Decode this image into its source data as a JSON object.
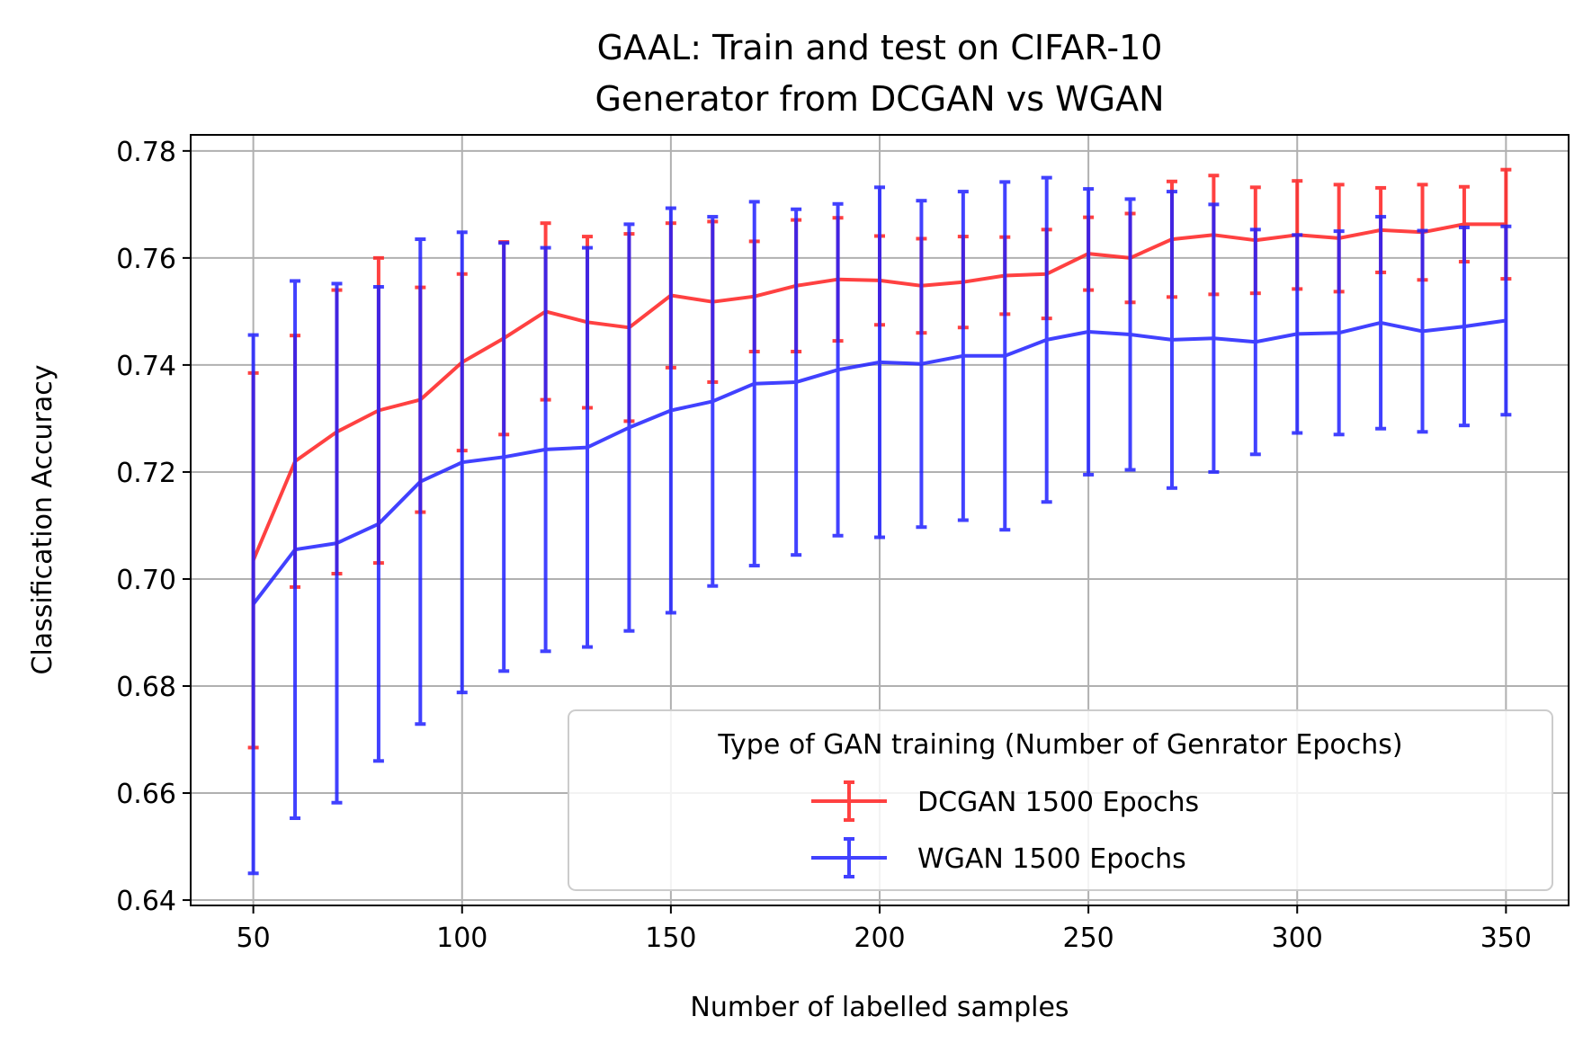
{
  "chart_data": {
    "type": "line",
    "title": [
      "GAAL: Train and test on CIFAR-10",
      "Generator from DCGAN vs WGAN"
    ],
    "xlabel": "Number of labelled samples",
    "ylabel": "Classification Accuracy",
    "xlim": [
      35,
      365
    ],
    "ylim": [
      0.639,
      0.783
    ],
    "xticks": [
      50,
      100,
      150,
      200,
      250,
      300,
      350
    ],
    "yticks": [
      0.64,
      0.66,
      0.68,
      0.7,
      0.72,
      0.74,
      0.76,
      0.78
    ],
    "xtick_labels": [
      "50",
      "100",
      "150",
      "200",
      "250",
      "300",
      "350"
    ],
    "ytick_labels": [
      "0.64",
      "0.66",
      "0.68",
      "0.70",
      "0.72",
      "0.74",
      "0.76",
      "0.78"
    ],
    "grid": true,
    "error_bars": true,
    "legend": {
      "title": "Type of GAN training (Number of Genrator Epochs)",
      "position": "lower-right"
    },
    "x": [
      50,
      60,
      70,
      80,
      90,
      100,
      110,
      120,
      130,
      140,
      150,
      160,
      170,
      180,
      190,
      200,
      210,
      220,
      230,
      240,
      250,
      260,
      270,
      280,
      290,
      300,
      310,
      320,
      330,
      340,
      350
    ],
    "series": [
      {
        "name": "DCGAN 1500 Epochs",
        "color": "#ff2020",
        "values": [
          0.7035,
          0.722,
          0.7275,
          0.7315,
          0.7335,
          0.7405,
          0.745,
          0.75,
          0.748,
          0.747,
          0.753,
          0.7518,
          0.7528,
          0.7548,
          0.756,
          0.7558,
          0.7548,
          0.7555,
          0.7567,
          0.757,
          0.7608,
          0.76,
          0.7635,
          0.7643,
          0.7633,
          0.7643,
          0.7637,
          0.7652,
          0.7648,
          0.7663,
          0.7663
        ],
        "errors": [
          0.035,
          0.0235,
          0.0265,
          0.0285,
          0.021,
          0.0165,
          0.018,
          0.0165,
          0.016,
          0.0175,
          0.0135,
          0.015,
          0.0103,
          0.0123,
          0.0115,
          0.0083,
          0.0088,
          0.0085,
          0.0072,
          0.0083,
          0.0068,
          0.0083,
          0.0108,
          0.0111,
          0.0099,
          0.0101,
          0.01,
          0.0079,
          0.0089,
          0.007,
          0.0102
        ]
      },
      {
        "name": "WGAN 1500 Epochs",
        "color": "#2020ff",
        "values": [
          0.6953,
          0.7055,
          0.7067,
          0.7103,
          0.7182,
          0.7218,
          0.7228,
          0.7242,
          0.7246,
          0.7283,
          0.7315,
          0.7332,
          0.7365,
          0.7368,
          0.7391,
          0.7405,
          0.7402,
          0.7417,
          0.7417,
          0.7447,
          0.7462,
          0.7457,
          0.7447,
          0.745,
          0.7443,
          0.7458,
          0.746,
          0.7479,
          0.7463,
          0.7472,
          0.7483
        ],
        "errors": [
          0.0503,
          0.0502,
          0.0485,
          0.0443,
          0.0453,
          0.043,
          0.04,
          0.0377,
          0.0373,
          0.038,
          0.0378,
          0.0345,
          0.034,
          0.0323,
          0.031,
          0.0327,
          0.0305,
          0.0307,
          0.0325,
          0.0303,
          0.0267,
          0.0253,
          0.0277,
          0.025,
          0.021,
          0.0185,
          0.019,
          0.0198,
          0.0188,
          0.0185,
          0.0176
        ]
      }
    ]
  }
}
